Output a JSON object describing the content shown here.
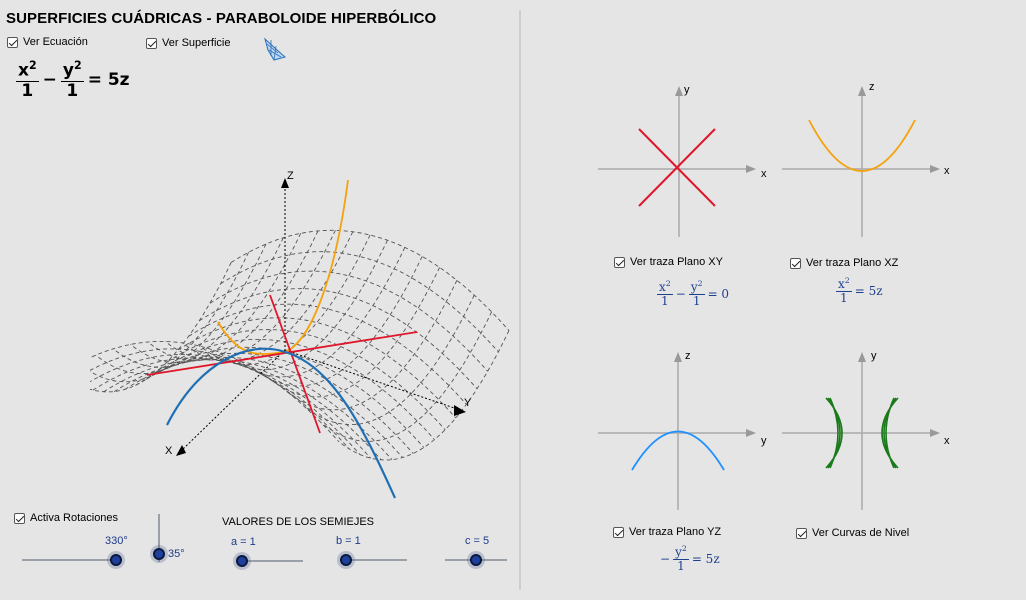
{
  "title": "SUPERFICIES CUÁDRICAS - PARABOLOIDE HIPERBÓLICO",
  "checkboxes": {
    "ver_ecuacion": "Ver Ecuación",
    "ver_superficie": "Ver Superficie",
    "traza_xy": "Ver traza Plano XY",
    "traza_xz": "Ver traza Plano XZ",
    "traza_yz": "Ver traza Plano YZ",
    "curvas_nivel": "Ver Curvas de Nivel",
    "activa_rotaciones": "Activa Rotaciones"
  },
  "equation": {
    "rhs": "= 5z",
    "den_x": "1",
    "den_y": "1"
  },
  "traces": {
    "xy_rhs": "= 0",
    "xz_rhs": "= 5z",
    "yz_rhs": "= 5z"
  },
  "axes": {
    "x": "x",
    "y": "y",
    "z": "z",
    "X3d": "X",
    "Y3d": "Y",
    "Z3d": "Z"
  },
  "section_label": "VALORES DE LOS SEMIEJES",
  "sliders": {
    "rot_h": {
      "label": "330°",
      "value": 330
    },
    "rot_v": {
      "label": "35°",
      "value": 35
    },
    "a": {
      "label": "a = 1",
      "value": 1
    },
    "b": {
      "label": "b = 1",
      "value": 1
    },
    "c": {
      "label": "c = 5",
      "value": 5
    }
  },
  "colors": {
    "red": "#e0162b",
    "orange": "#f5a20c",
    "blue": "#1f6fb5",
    "lightblue": "#1e90ff",
    "green": "#1a7a1a"
  }
}
